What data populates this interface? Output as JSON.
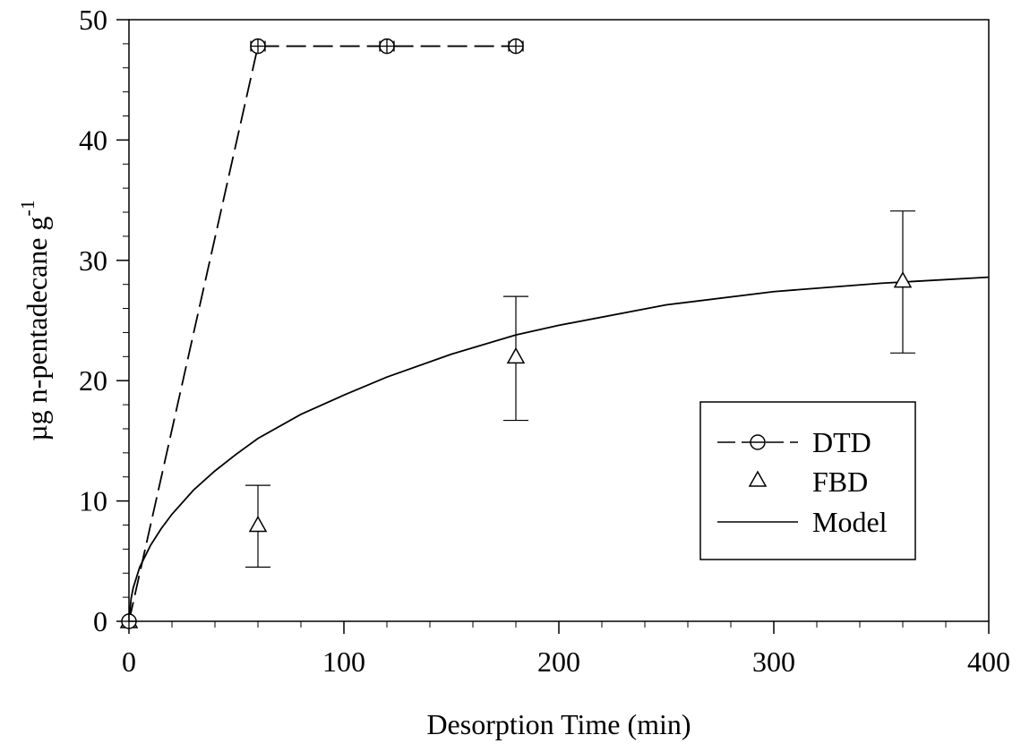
{
  "chart_data": {
    "type": "scatter",
    "title": "",
    "xlabel": "Desorption Time (min)",
    "ylabel_main": "µg n-pentadecane g",
    "ylabel_superscript": "-1",
    "xlim": [
      0,
      400
    ],
    "ylim": [
      0,
      50
    ],
    "x_ticks": [
      0,
      100,
      200,
      300,
      400
    ],
    "y_ticks": [
      0,
      10,
      20,
      30,
      40,
      50
    ],
    "x_minor_step": 20,
    "y_minor_step": 2,
    "grid": false,
    "legend_position": "lower-right",
    "series": [
      {
        "name": "DTD",
        "kind": "dashed-line-with-open-circles",
        "x": [
          0,
          60,
          120,
          180
        ],
        "y": [
          0,
          47.8,
          47.8,
          47.8
        ],
        "x_err": [
          0,
          1.2,
          1.8,
          1.5
        ],
        "y_err": [
          0,
          0.3,
          0.3,
          0.4
        ]
      },
      {
        "name": "FBD",
        "kind": "open-triangles-with-error-bars",
        "x": [
          0,
          60,
          180,
          360
        ],
        "y": [
          0,
          8.0,
          22.0,
          28.3
        ],
        "y_err_low": [
          0,
          3.5,
          5.3,
          6.0
        ],
        "y_err_high": [
          0,
          3.3,
          5.0,
          5.8
        ]
      },
      {
        "name": "Model",
        "kind": "solid-line",
        "x": [
          0,
          1,
          2,
          5,
          10,
          15,
          20,
          30,
          40,
          50,
          60,
          80,
          100,
          120,
          150,
          180,
          200,
          250,
          300,
          350,
          400
        ],
        "y": [
          0,
          1.9,
          2.8,
          4.5,
          6.3,
          7.7,
          8.9,
          10.9,
          12.5,
          13.9,
          15.2,
          17.2,
          18.8,
          20.3,
          22.2,
          23.8,
          24.6,
          26.3,
          27.4,
          28.1,
          28.6
        ]
      }
    ]
  }
}
